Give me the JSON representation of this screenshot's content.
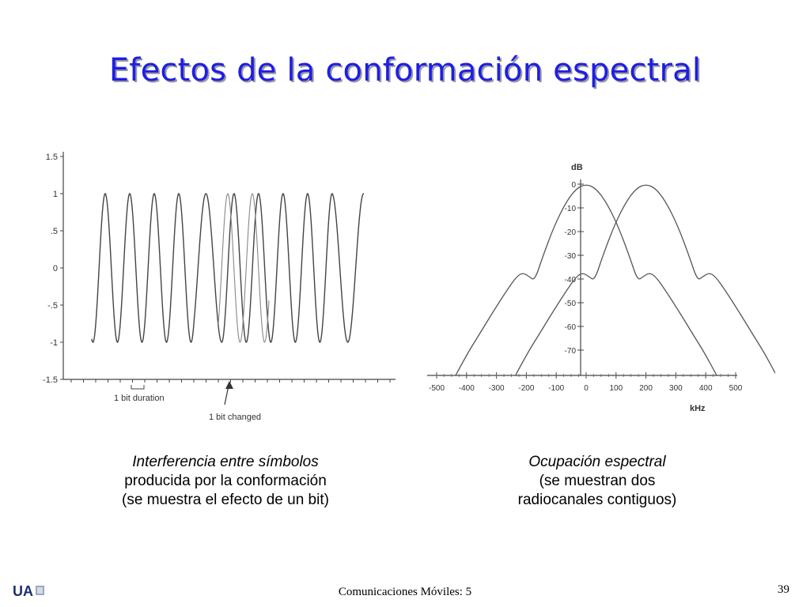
{
  "slide": {
    "title": "Efectos de la conformación espectral",
    "footer": "Comunicaciones Móviles: 5",
    "page_number": "39",
    "logo_text": "UA"
  },
  "captions": {
    "left": {
      "line1": "Interferencia entre símbolos",
      "line2": "producida por la conformación",
      "line3": "(se muestra el efecto de un bit)"
    },
    "right": {
      "line1": "Ocupación espectral",
      "line2": "(se muestran dos",
      "line3": "radiocanales contiguos)"
    }
  },
  "left_plot": {
    "y_ticks": [
      "1.5",
      "1",
      ".5",
      "0",
      "-.5",
      "-1",
      "-1.5"
    ],
    "annotation_bit_duration": "1 bit duration",
    "annotation_bit_changed": "1 bit changed"
  },
  "right_plot": {
    "y_unit": "dB",
    "x_unit": "kHz",
    "y_ticks": [
      "0",
      "-10",
      "-20",
      "-30",
      "-40",
      "-50",
      "-60",
      "-70"
    ],
    "x_ticks": [
      "-500",
      "-400",
      "-300",
      "-200",
      "-100",
      "0",
      "100",
      "200",
      "300",
      "400",
      "500"
    ]
  },
  "colors": {
    "title": "#1e1ee6",
    "curve": "#555555"
  }
}
